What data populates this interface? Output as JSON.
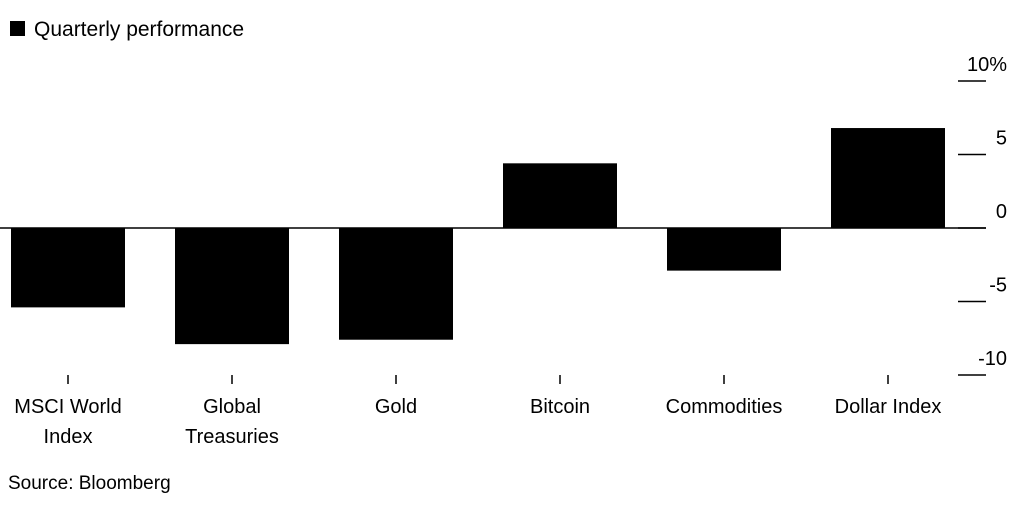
{
  "chart_data": {
    "type": "bar",
    "title": "",
    "legend": [
      {
        "name": "Quarterly performance",
        "color": "#000000"
      }
    ],
    "legend_placement": "top-left",
    "categories": [
      [
        "MSCI World",
        "Index"
      ],
      [
        "Global",
        "Treasuries"
      ],
      [
        "Gold"
      ],
      [
        "Bitcoin"
      ],
      [
        "Commodities"
      ],
      [
        "Dollar Index"
      ]
    ],
    "series": [
      {
        "name": "Quarterly performance",
        "color": "#000000",
        "values": [
          -5.4,
          -7.9,
          -7.6,
          4.4,
          -2.9,
          6.8
        ]
      }
    ],
    "ylim": [
      -10,
      10
    ],
    "yticks": [
      10,
      5,
      0,
      -5,
      -10
    ],
    "ytick_labels": [
      "10%",
      "5",
      "0",
      "-5",
      "-10"
    ],
    "y_axis_side": "right",
    "grid": false,
    "source": "Source: Bloomberg"
  }
}
